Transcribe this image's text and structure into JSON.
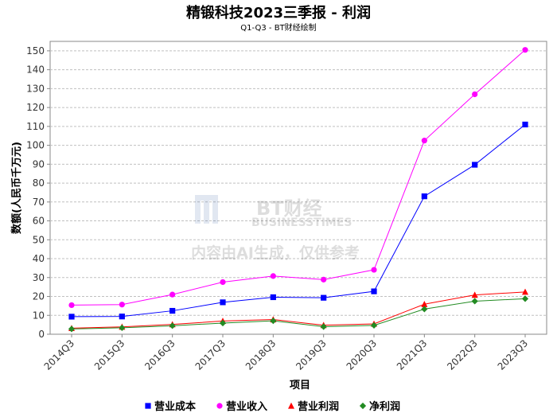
{
  "chart_data": {
    "type": "line",
    "title": "精锻科技2023三季报 - 利润",
    "subtitle": "Q1-Q3 - BT财经绘制",
    "xlabel": "项目",
    "ylabel": "数额(人民币千万元)",
    "categories": [
      "2014Q3",
      "2015Q3",
      "2016Q3",
      "2017Q3",
      "2018Q3",
      "2019Q3",
      "2020Q3",
      "2021Q3",
      "2022Q3",
      "2023Q3"
    ],
    "ylim": [
      0,
      155
    ],
    "yticks": [
      0,
      10,
      20,
      30,
      40,
      50,
      60,
      70,
      80,
      90,
      100,
      110,
      120,
      130,
      140,
      150
    ],
    "grid": true,
    "legend_position": "bottom",
    "series": [
      {
        "name": "营业成本",
        "color": "#0000ff",
        "marker": "square",
        "values": [
          9.3,
          9.4,
          12.4,
          16.9,
          19.6,
          19.3,
          22.7,
          73.0,
          89.7,
          111.0
        ]
      },
      {
        "name": "营业收入",
        "color": "#ff00ff",
        "marker": "circle",
        "values": [
          15.4,
          15.7,
          21.0,
          27.6,
          30.8,
          28.9,
          34.1,
          102.5,
          127.0,
          150.5
        ]
      },
      {
        "name": "营业利润",
        "color": "#ff0000",
        "marker": "triangle",
        "values": [
          3.2,
          3.9,
          5.2,
          7.0,
          7.8,
          4.8,
          5.5,
          15.9,
          20.8,
          22.4
        ]
      },
      {
        "name": "净利润",
        "color": "#228b22",
        "marker": "diamond",
        "values": [
          2.8,
          3.4,
          4.5,
          5.9,
          7.1,
          4.0,
          4.7,
          13.3,
          17.5,
          18.8
        ]
      }
    ]
  },
  "watermark": {
    "brand": "BT财经",
    "brand_en": "BUSINESSTIMES",
    "notice": "内容由AI生成，仅供参考"
  }
}
